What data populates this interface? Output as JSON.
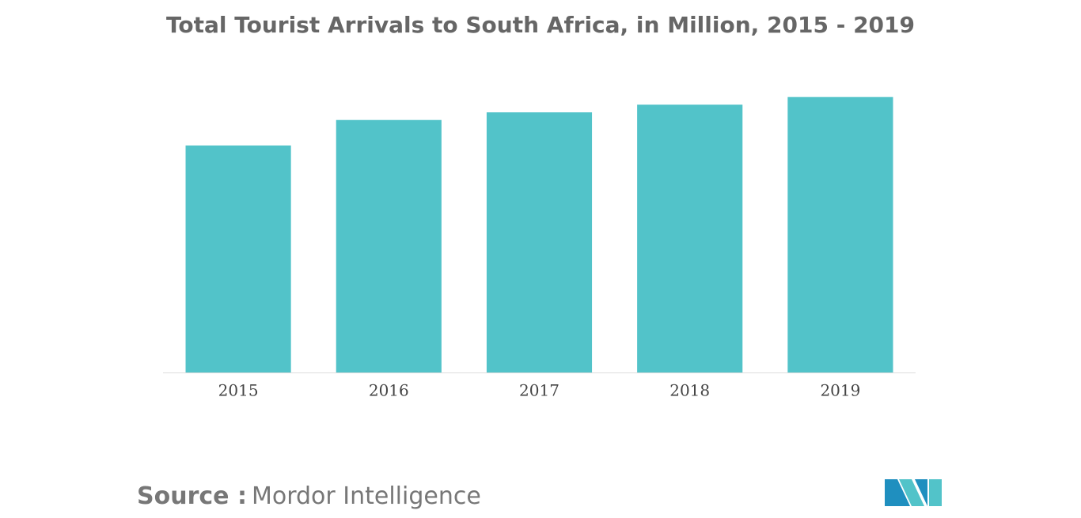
{
  "chart_data": {
    "type": "bar",
    "title": "Total Tourist Arrivals to South Africa, in Million, 2015 - 2019",
    "categories": [
      "2015",
      "2016",
      "2017",
      "2018",
      "2019"
    ],
    "values": [
      8.9,
      9.9,
      10.2,
      10.5,
      10.8
    ],
    "color": "#52c3c9",
    "ylim": [
      0,
      12
    ],
    "source": {
      "label": "Source :",
      "text": "Mordor Intelligence"
    }
  }
}
